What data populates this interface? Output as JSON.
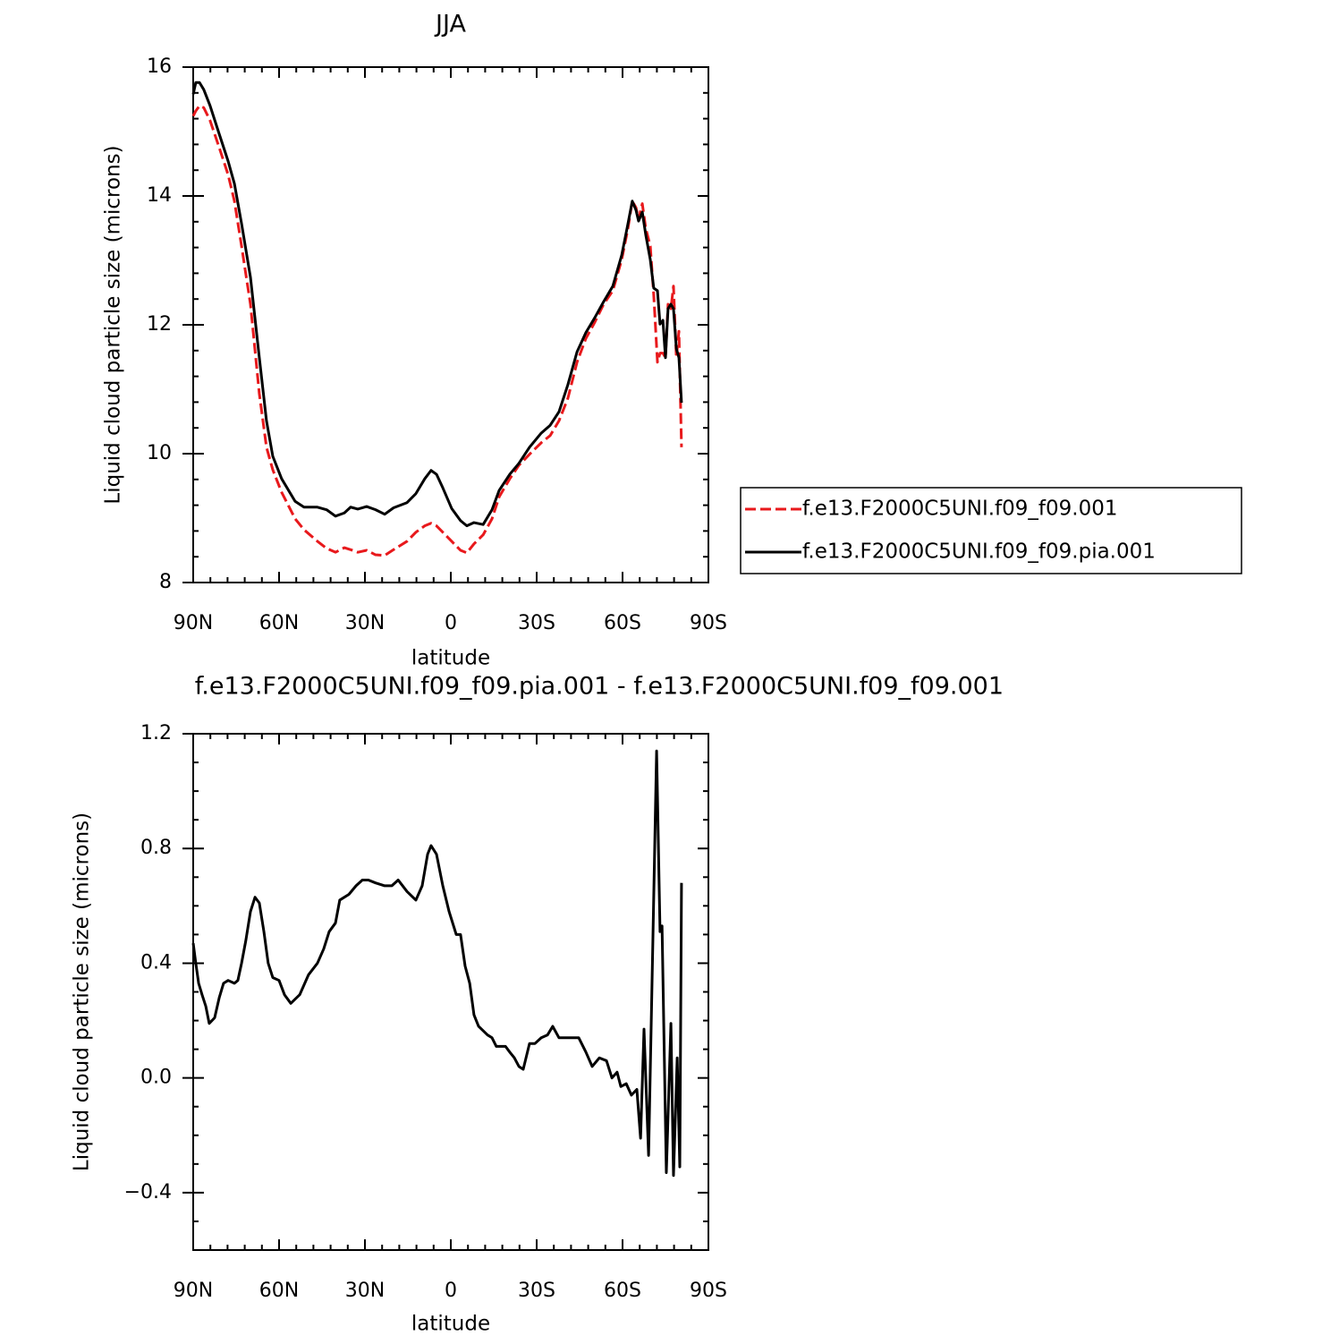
{
  "chart_data": [
    {
      "type": "line",
      "title": "JJA",
      "x_label": "latitude",
      "y_label": "Liquid cloud particle size (microns)",
      "x": [
        90,
        89.1,
        87.8,
        86.3,
        84.1,
        80.9,
        77.8,
        75.6,
        73.1,
        70,
        66.9,
        64.4,
        62.2,
        59.1,
        54.4,
        51.3,
        46.6,
        43.4,
        40.3,
        37.2,
        35,
        32.5,
        29.4,
        26.3,
        23.1,
        20,
        15.3,
        12.2,
        9.1,
        6.9,
        5,
        2.8,
        -0.3,
        -3.4,
        -5.6,
        -8.1,
        -11.3,
        -14.4,
        -16.9,
        -20.6,
        -23.8,
        -27.5,
        -31.6,
        -34.7,
        -37.8,
        -40.9,
        -44.1,
        -47.2,
        -50.3,
        -53.4,
        -56.6,
        -59.7,
        -61.9,
        -63.4,
        -64.7,
        -65.6,
        -66.9,
        -68.1,
        -69.7,
        -70.9,
        -72.2,
        -73.1,
        -74.1,
        -75,
        -75.9,
        -76.9,
        -77.8,
        -78.8,
        -79.7,
        -80.6
      ],
      "series": [
        {
          "name": "f.e13.F2000C5UNI.f09_f09.001",
          "color": "#e8191c",
          "linestyle": "dashed",
          "values": [
            15.24,
            15.32,
            15.4,
            15.37,
            15.17,
            14.75,
            14.33,
            13.92,
            13.22,
            12.32,
            10.93,
            10.1,
            9.75,
            9.4,
            8.99,
            8.82,
            8.64,
            8.53,
            8.47,
            8.54,
            8.51,
            8.47,
            8.5,
            8.43,
            8.42,
            8.51,
            8.64,
            8.78,
            8.88,
            8.92,
            8.88,
            8.78,
            8.64,
            8.5,
            8.46,
            8.6,
            8.74,
            8.99,
            9.33,
            9.61,
            9.82,
            9.99,
            10.17,
            10.28,
            10.51,
            10.86,
            11.42,
            11.79,
            12.04,
            12.32,
            12.53,
            13.01,
            13.5,
            13.92,
            13.82,
            13.64,
            13.88,
            13.5,
            13.22,
            12.46,
            11.42,
            11.56,
            11.56,
            11.49,
            12.32,
            12.25,
            12.6,
            11.49,
            11.9,
            10.1
          ]
        },
        {
          "name": "f.e13.F2000C5UNI.f09_f09.pia.001",
          "color": "#000000",
          "linestyle": "solid",
          "values": [
            15.58,
            15.76,
            15.76,
            15.65,
            15.4,
            14.96,
            14.54,
            14.19,
            13.57,
            12.74,
            11.49,
            10.51,
            9.96,
            9.61,
            9.26,
            9.17,
            9.17,
            9.13,
            9.03,
            9.08,
            9.17,
            9.14,
            9.18,
            9.13,
            9.06,
            9.16,
            9.24,
            9.38,
            9.61,
            9.74,
            9.68,
            9.47,
            9.15,
            8.96,
            8.88,
            8.93,
            8.9,
            9.13,
            9.43,
            9.68,
            9.85,
            10.1,
            10.32,
            10.44,
            10.65,
            11.07,
            11.58,
            11.88,
            12.11,
            12.36,
            12.6,
            13.08,
            13.57,
            13.92,
            13.78,
            13.61,
            13.75,
            13.4,
            13.01,
            12.57,
            12.53,
            12.01,
            12.07,
            11.49,
            12.25,
            12.32,
            12.25,
            11.63,
            11.49,
            10.79
          ]
        }
      ],
      "xlim": [
        90,
        -90
      ],
      "xticks": [
        {
          "value": 90,
          "label": "90N"
        },
        {
          "value": 60,
          "label": "60N"
        },
        {
          "value": 30,
          "label": "30N"
        },
        0,
        {
          "value": -30,
          "label": "30S"
        },
        {
          "value": -60,
          "label": "60S"
        },
        {
          "value": -90,
          "label": "90S"
        }
      ],
      "ylim": [
        8,
        16
      ],
      "yticks": [
        8,
        10,
        12,
        14,
        16
      ],
      "legend": "right"
    },
    {
      "type": "line",
      "title": "f.e13.F2000C5UNI.f09_f09.pia.001 - f.e13.F2000C5UNI.f09_f09.001",
      "x_label": "latitude",
      "y_label": "Liquid cloud particle size (microns)",
      "x": [
        90,
        89.1,
        88.1,
        86.9,
        85.6,
        84.4,
        82.5,
        80.9,
        79.4,
        77.8,
        75.6,
        74.4,
        73.1,
        71.6,
        70,
        68.4,
        66.9,
        65.3,
        63.8,
        62.2,
        60,
        58.1,
        55.9,
        52.8,
        49.7,
        46.6,
        44.4,
        42.5,
        40.3,
        38.8,
        35.6,
        33.1,
        30.9,
        28.8,
        26.3,
        23.1,
        20.6,
        18.4,
        15.3,
        12.2,
        10,
        8.1,
        6.9,
        5,
        2.8,
        0.6,
        -1.9,
        -3.4,
        -5,
        -6.6,
        -8.1,
        -9.7,
        -12.8,
        -14.4,
        -15.9,
        -17.5,
        -19.1,
        -20.6,
        -22.2,
        -23.8,
        -25.3,
        -27.5,
        -29.4,
        -31.6,
        -33.8,
        -35.6,
        -37.8,
        -40,
        -42.5,
        -44.7,
        -47.2,
        -49.4,
        -51.9,
        -54.4,
        -56.3,
        -58.1,
        -59.4,
        -61.3,
        -63.1,
        -65,
        -66.3,
        -67.5,
        -69.1,
        -70.6,
        -71.9,
        -73.1,
        -73.8,
        -75.3,
        -76.9,
        -77.8,
        -79.1,
        -80,
        -80.6
      ],
      "series": [
        {
          "color": "#000000",
          "linestyle": "solid",
          "values": [
            0.47,
            0.4,
            0.33,
            0.29,
            0.25,
            0.19,
            0.21,
            0.28,
            0.33,
            0.34,
            0.33,
            0.34,
            0.4,
            0.48,
            0.58,
            0.63,
            0.61,
            0.51,
            0.4,
            0.35,
            0.34,
            0.29,
            0.26,
            0.29,
            0.36,
            0.4,
            0.45,
            0.51,
            0.54,
            0.62,
            0.64,
            0.67,
            0.69,
            0.69,
            0.68,
            0.67,
            0.67,
            0.69,
            0.65,
            0.62,
            0.67,
            0.78,
            0.81,
            0.78,
            0.67,
            0.58,
            0.5,
            0.5,
            0.39,
            0.33,
            0.22,
            0.18,
            0.15,
            0.14,
            0.11,
            0.11,
            0.11,
            0.09,
            0.07,
            0.04,
            0.03,
            0.12,
            0.12,
            0.14,
            0.15,
            0.18,
            0.14,
            0.14,
            0.14,
            0.14,
            0.09,
            0.04,
            0.07,
            0.06,
            0,
            0.02,
            -0.03,
            -0.02,
            -0.06,
            -0.04,
            -0.21,
            0.17,
            -0.27,
            0.48,
            1.14,
            0.51,
            0.53,
            -0.33,
            0.19,
            -0.34,
            0.07,
            -0.31,
            0.68
          ]
        }
      ],
      "xlim": [
        90,
        -90
      ],
      "xticks": [
        {
          "value": 90,
          "label": "90N"
        },
        {
          "value": 60,
          "label": "60N"
        },
        {
          "value": 30,
          "label": "30N"
        },
        0,
        {
          "value": -30,
          "label": "30S"
        },
        {
          "value": -60,
          "label": "60S"
        },
        {
          "value": -90,
          "label": "90S"
        }
      ],
      "ylim": [
        -0.6,
        1.2
      ],
      "yticks": [
        {
          "value": -0.4,
          "label": "−0.4"
        },
        {
          "value": 0,
          "label": "0.0"
        },
        0.4,
        0.8,
        1.2
      ]
    }
  ]
}
